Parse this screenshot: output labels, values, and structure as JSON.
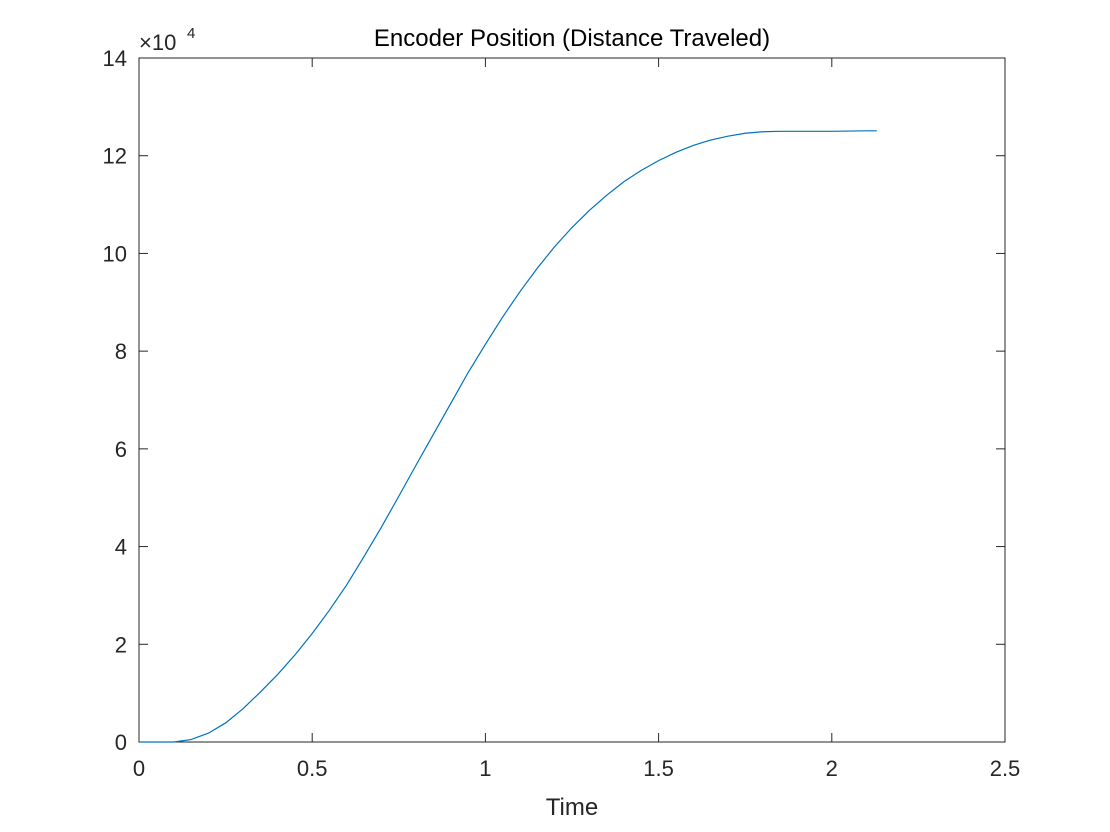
{
  "chart_data": {
    "type": "line",
    "title": "Encoder Position (Distance Traveled)",
    "xlabel": "Time",
    "ylabel": "",
    "xlim": [
      0,
      2.5
    ],
    "ylim": [
      0,
      140000
    ],
    "x_ticks": [
      0,
      0.5,
      1,
      1.5,
      2,
      2.5
    ],
    "x_tick_labels": [
      "0",
      "0.5",
      "1",
      "1.5",
      "2",
      "2.5"
    ],
    "y_ticks": [
      0,
      20000,
      40000,
      60000,
      80000,
      100000,
      120000,
      140000
    ],
    "y_tick_labels": [
      "0",
      "2",
      "4",
      "6",
      "8",
      "10",
      "12",
      "14"
    ],
    "y_exponent_label": {
      "base": "×10",
      "exponent": "4"
    },
    "grid": false,
    "legend": "none",
    "line_color": "#0072BD",
    "series": [
      {
        "x": [
          0,
          0.05,
          0.1,
          0.15,
          0.2,
          0.25,
          0.3,
          0.35,
          0.4,
          0.45,
          0.5,
          0.55,
          0.6,
          0.65,
          0.7,
          0.75,
          0.8,
          0.85,
          0.9,
          0.95,
          1.0,
          1.05,
          1.1,
          1.15,
          1.2,
          1.25,
          1.3,
          1.35,
          1.4,
          1.45,
          1.5,
          1.55,
          1.6,
          1.65,
          1.7,
          1.75,
          1.8,
          1.85,
          1.9,
          2.0,
          2.1,
          2.13
        ],
        "values": [
          0,
          0,
          0,
          500,
          1800,
          3900,
          6800,
          10200,
          13800,
          17800,
          22200,
          27000,
          32200,
          38000,
          44000,
          50300,
          56700,
          63000,
          69300,
          75600,
          81400,
          87000,
          92200,
          97000,
          101400,
          105300,
          108800,
          111900,
          114700,
          117000,
          119000,
          120700,
          122100,
          123200,
          124000,
          124600,
          124900,
          125000,
          125000,
          125000,
          125100,
          125100
        ]
      }
    ]
  }
}
